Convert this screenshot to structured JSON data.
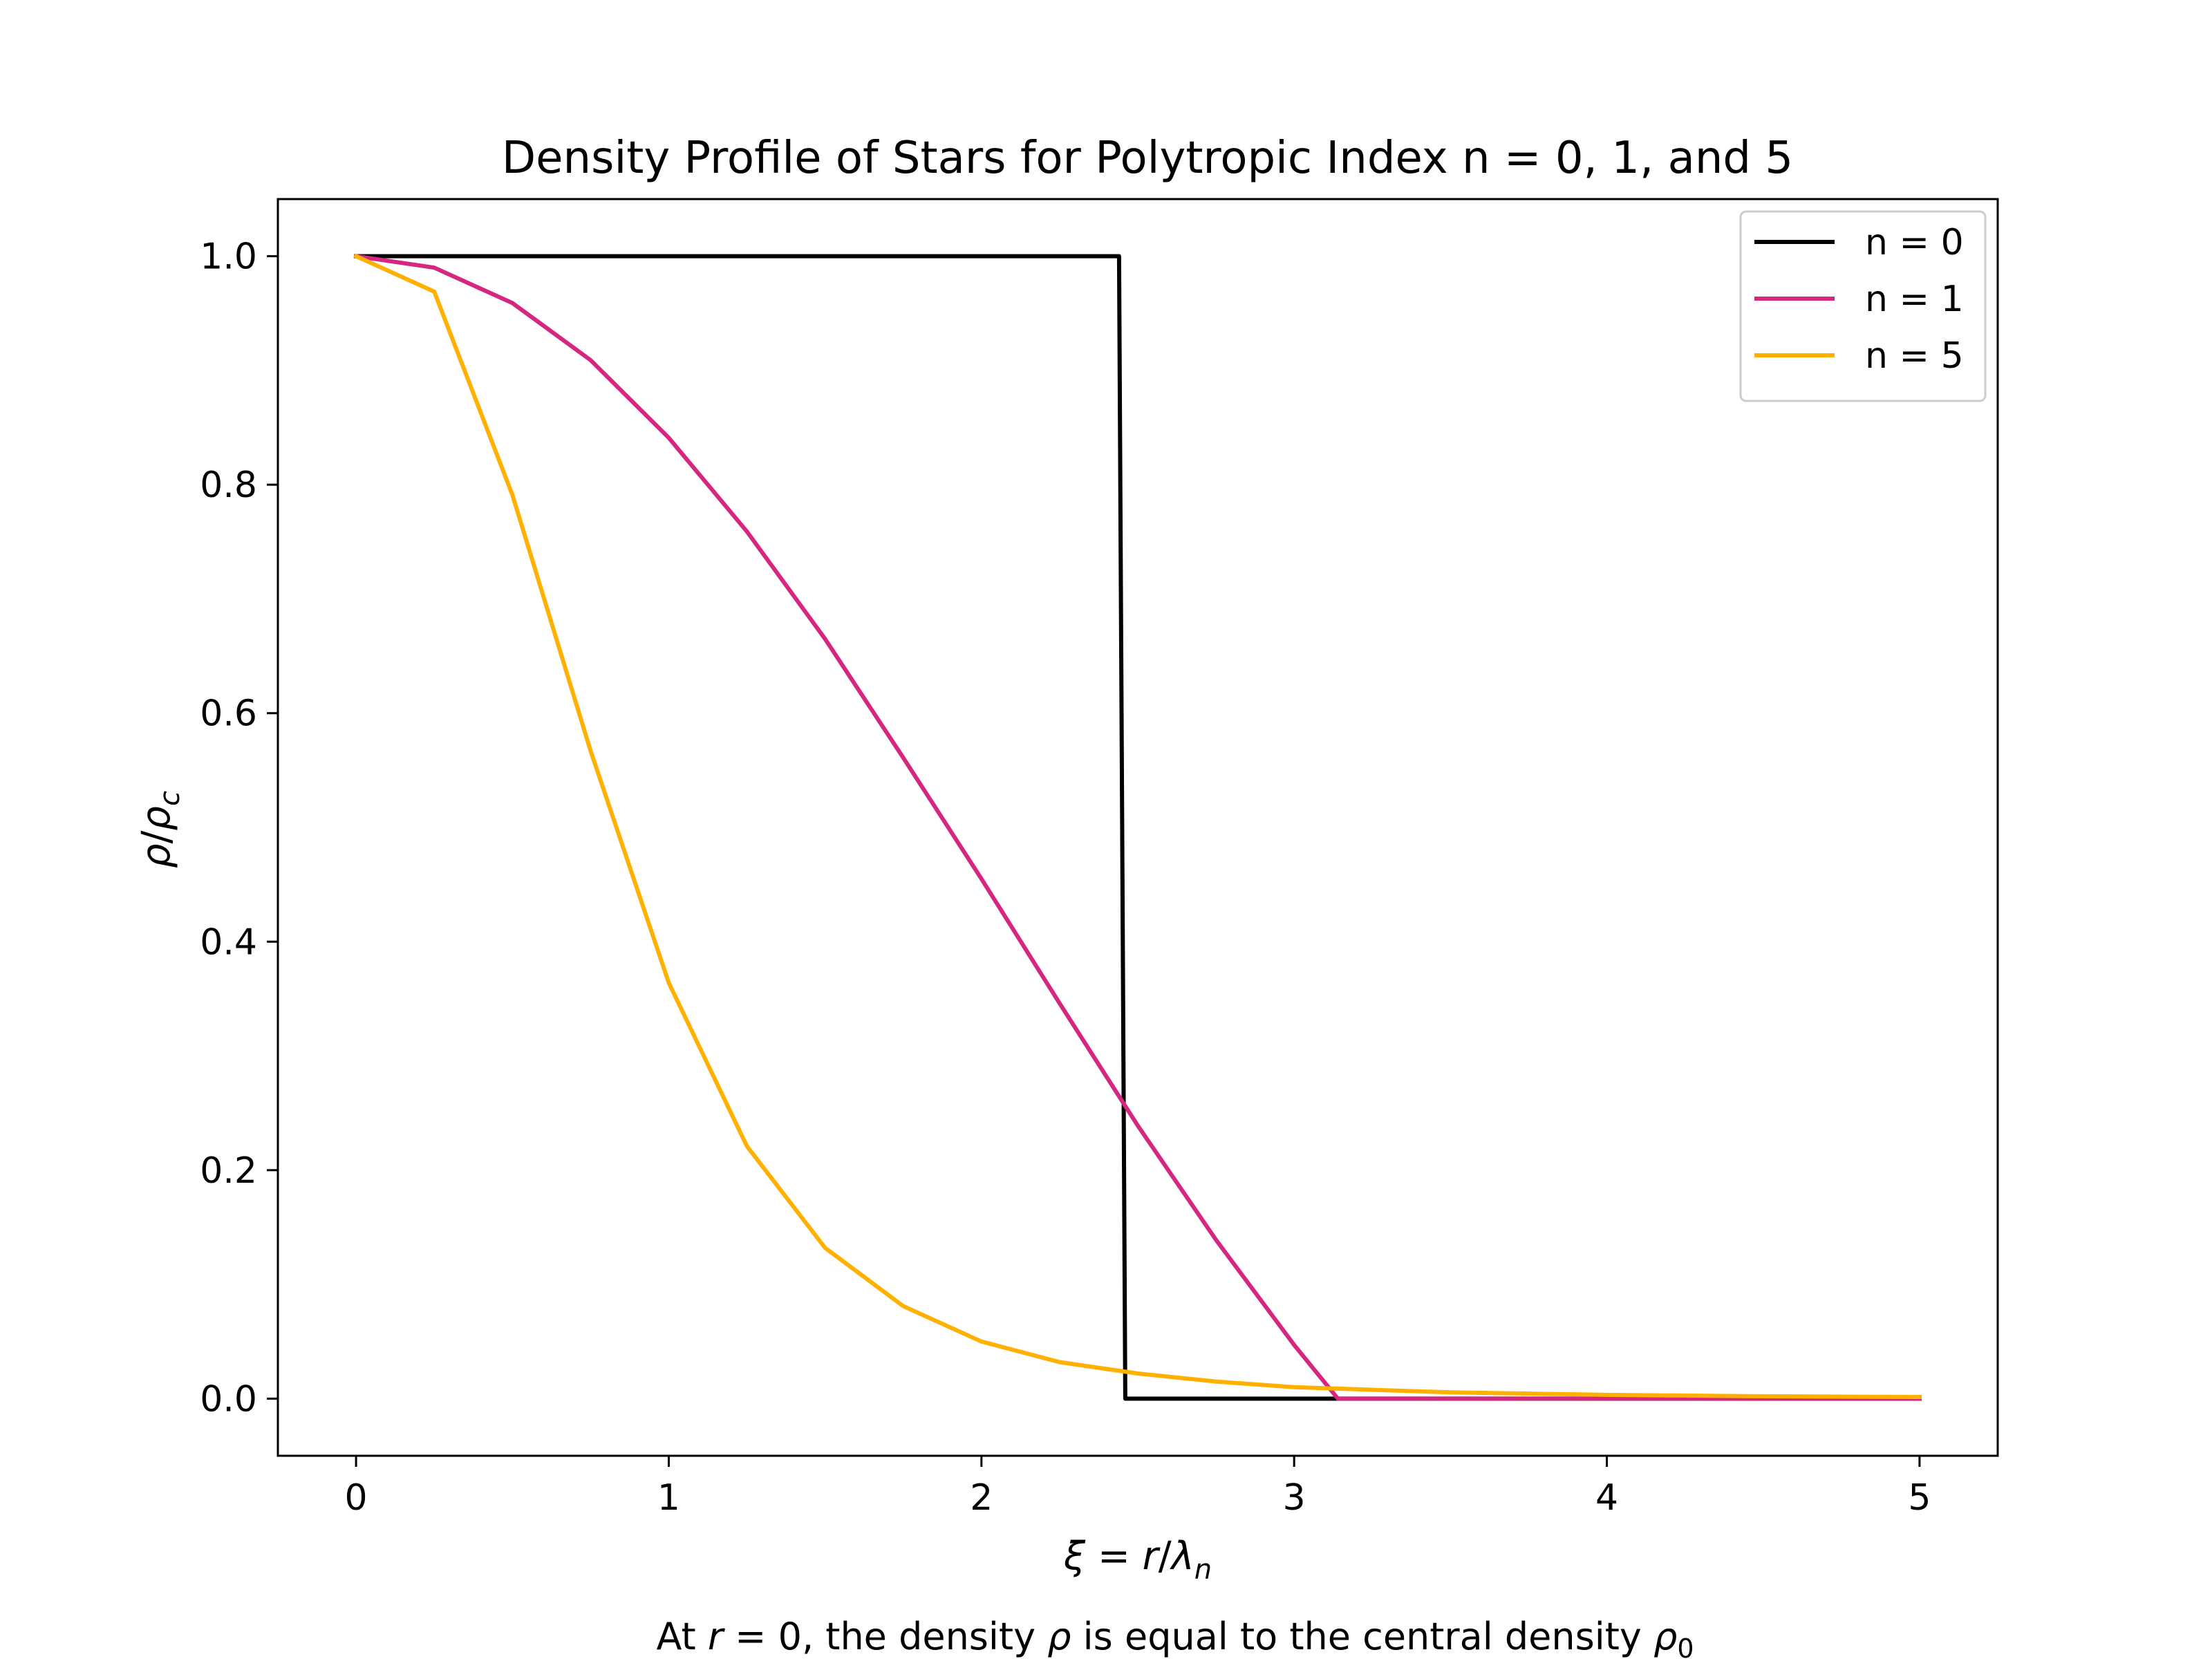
{
  "chart_data": {
    "type": "line",
    "title": "Density Profile of Stars for Polytropic Index n = 0, 1, and 5",
    "xlabel": {
      "var": "ξ",
      "eq": " = ",
      "num": "r",
      "slash": "/",
      "den": "λ",
      "sub": "n"
    },
    "ylabel": {
      "num": "ρ",
      "slash": "/",
      "den": "ρ",
      "sub": "c"
    },
    "caption": {
      "pre": "At ",
      "r": "r",
      "eq": " = 0, the density ",
      "rho": "ρ",
      "post": " is equal to the central density ",
      "rho0": "ρ",
      "sub": "0"
    },
    "xlim": [
      -0.25,
      5.25
    ],
    "ylim": [
      -0.05,
      1.05
    ],
    "xticks": [
      0,
      1,
      2,
      3,
      4,
      5
    ],
    "xtick_labels": [
      "0",
      "1",
      "2",
      "3",
      "4",
      "5"
    ],
    "yticks": [
      0.0,
      0.2,
      0.4,
      0.6,
      0.8,
      1.0
    ],
    "ytick_labels": [
      "0.0",
      "0.2",
      "0.4",
      "0.6",
      "0.8",
      "1.0"
    ],
    "grid": false,
    "legend_position": "top-right",
    "series": [
      {
        "name": "n = 0",
        "color": "#000000",
        "x": [
          0,
          2.44,
          2.45,
          2.46,
          3.5,
          5.0
        ],
        "y": [
          1,
          1,
          0.5,
          0,
          0,
          0
        ]
      },
      {
        "name": "n = 1",
        "color": "#d62780",
        "x": [
          0,
          0.25,
          0.5,
          0.75,
          1.0,
          1.25,
          1.5,
          1.75,
          2.0,
          2.25,
          2.5,
          2.75,
          3.0,
          3.14,
          3.5,
          4.0,
          4.5,
          5.0
        ],
        "y": [
          1.0,
          0.99,
          0.959,
          0.909,
          0.841,
          0.759,
          0.665,
          0.561,
          0.455,
          0.346,
          0.239,
          0.139,
          0.047,
          0.0,
          0.0,
          0.0,
          0.0,
          0.0
        ]
      },
      {
        "name": "n = 5",
        "color": "#ffb000",
        "x": [
          0,
          0.25,
          0.5,
          0.75,
          1.0,
          1.25,
          1.5,
          1.75,
          2.0,
          2.25,
          2.5,
          2.75,
          3.0,
          3.5,
          4.0,
          4.5,
          5.0
        ],
        "y": [
          1.0,
          0.969,
          0.791,
          0.567,
          0.364,
          0.221,
          0.132,
          0.081,
          0.05,
          0.032,
          0.022,
          0.015,
          0.01,
          0.0055,
          0.0033,
          0.0021,
          0.0014
        ]
      }
    ]
  }
}
